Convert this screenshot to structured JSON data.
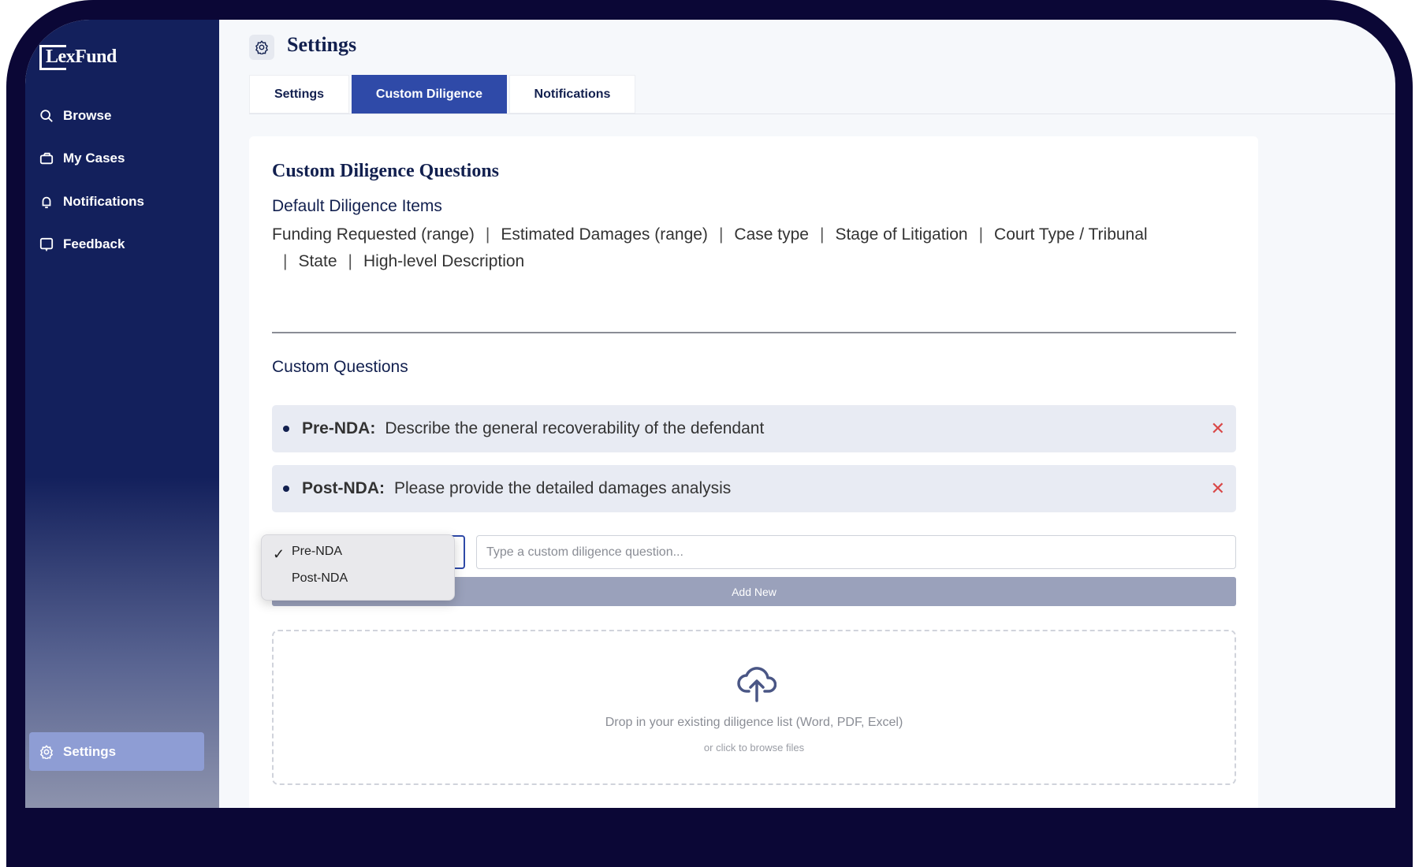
{
  "brand": {
    "logo": "LexFund"
  },
  "sidebar": {
    "items": [
      {
        "label": "Browse",
        "icon": "search-icon"
      },
      {
        "label": "My Cases",
        "icon": "briefcase-icon"
      },
      {
        "label": "Notifications",
        "icon": "bell-icon"
      },
      {
        "label": "Feedback",
        "icon": "message-icon"
      }
    ],
    "active": {
      "label": "Settings",
      "icon": "gear-icon"
    }
  },
  "header": {
    "title": "Settings"
  },
  "tabs": [
    {
      "label": "Settings"
    },
    {
      "label": "Custom Diligence",
      "active": true
    },
    {
      "label": "Notifications"
    }
  ],
  "card": {
    "title": "Custom Diligence Questions",
    "default_title": "Default Diligence Items",
    "default_items": [
      "Funding Requested (range)",
      "Estimated Damages (range)",
      "Case type",
      "Stage of Litigation",
      "Court Type / Tribunal",
      "State",
      "High-level Description"
    ],
    "custom_title": "Custom Questions",
    "questions": [
      {
        "stage": "Pre-NDA:",
        "text": "Describe the general recoverability of the defendant"
      },
      {
        "stage": "Post-NDA:",
        "text": "Please provide the detailed damages analysis"
      }
    ],
    "input_placeholder": "Type a custom diligence question...",
    "add_label": "Add New",
    "dropdown": {
      "options": [
        "Pre-NDA",
        "Post-NDA"
      ],
      "selected": "Pre-NDA"
    },
    "upload": {
      "text": "Drop in your existing diligence list (Word, PDF, Excel)",
      "subtext": "or click to browse files"
    }
  },
  "colors": {
    "sidebar": "#13205c",
    "accent": "#2f4aa8",
    "delete": "#d94848"
  }
}
